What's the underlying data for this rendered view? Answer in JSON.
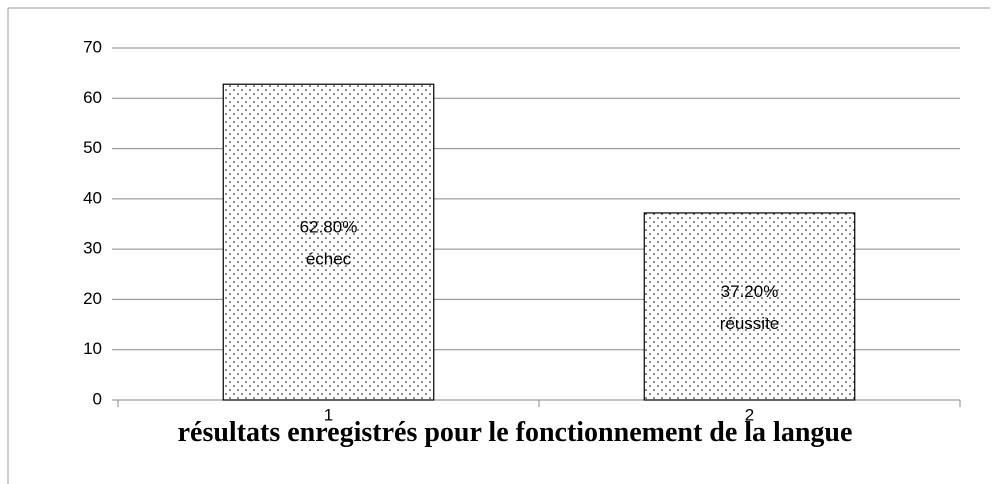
{
  "chart_data": {
    "type": "bar",
    "title": "résultats enregistrés pour le fonctionnement de la langue",
    "categories": [
      "1",
      "2"
    ],
    "values": [
      62.8,
      37.2
    ],
    "value_labels": [
      "62.80%",
      "37.20%"
    ],
    "point_labels": [
      "échec",
      "réussite"
    ],
    "ylim": [
      0,
      70
    ],
    "yticks": [
      0,
      10,
      20,
      30,
      40,
      50,
      60,
      70
    ],
    "grid": true,
    "pattern": "dots",
    "color": "#000000"
  }
}
